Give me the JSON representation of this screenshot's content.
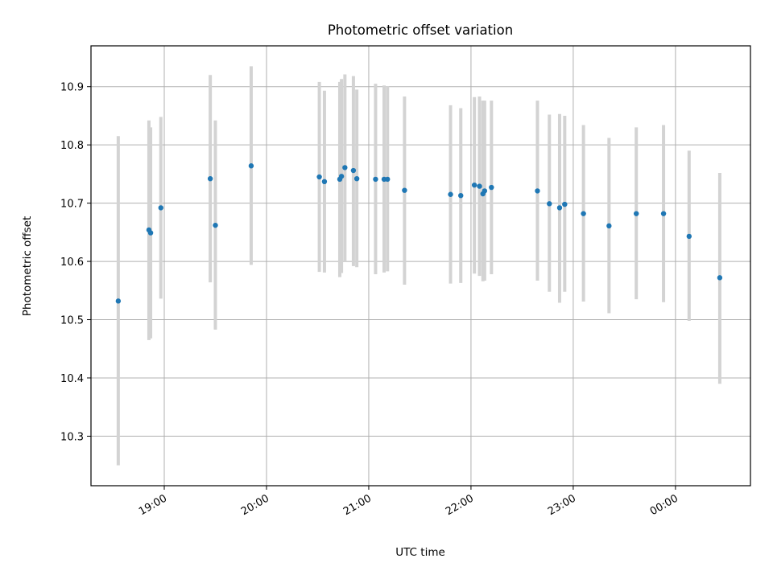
{
  "chart_data": {
    "type": "scatter",
    "title": "Photometric offset variation",
    "xlabel": "UTC time",
    "ylabel": "Photometric offset",
    "x_axis": {
      "kind": "time",
      "range": [
        "18:17",
        "00:44"
      ],
      "ticks": [
        "19:00",
        "20:00",
        "21:00",
        "22:00",
        "23:00",
        "00:00"
      ]
    },
    "ylim": [
      10.215,
      10.97
    ],
    "y_ticks": [
      "10.3",
      "10.4",
      "10.5",
      "10.6",
      "10.7",
      "10.8",
      "10.9"
    ],
    "grid": true,
    "legend": "none",
    "colors": {
      "points": "#1f77b4",
      "error_bars": "#d3d3d3"
    },
    "series": [
      {
        "points": [
          {
            "t": "18:33",
            "y": 10.532,
            "lo": 10.25,
            "hi": 10.815
          },
          {
            "t": "18:51",
            "y": 10.654,
            "lo": 10.465,
            "hi": 10.842
          },
          {
            "t": "18:52",
            "y": 10.649,
            "lo": 10.468,
            "hi": 10.83
          },
          {
            "t": "18:58",
            "y": 10.692,
            "lo": 10.536,
            "hi": 10.848
          },
          {
            "t": "19:27",
            "y": 10.742,
            "lo": 10.564,
            "hi": 10.92
          },
          {
            "t": "19:30",
            "y": 10.662,
            "lo": 10.483,
            "hi": 10.842
          },
          {
            "t": "19:51",
            "y": 10.764,
            "lo": 10.594,
            "hi": 10.935
          },
          {
            "t": "20:31",
            "y": 10.745,
            "lo": 10.582,
            "hi": 10.908
          },
          {
            "t": "20:34",
            "y": 10.737,
            "lo": 10.581,
            "hi": 10.893
          },
          {
            "t": "20:43",
            "y": 10.741,
            "lo": 10.573,
            "hi": 10.908
          },
          {
            "t": "20:44",
            "y": 10.746,
            "lo": 10.58,
            "hi": 10.913
          },
          {
            "t": "20:46",
            "y": 10.761,
            "lo": 10.6,
            "hi": 10.921
          },
          {
            "t": "20:51",
            "y": 10.756,
            "lo": 10.592,
            "hi": 10.918
          },
          {
            "t": "20:53",
            "y": 10.742,
            "lo": 10.59,
            "hi": 10.895
          },
          {
            "t": "21:04",
            "y": 10.741,
            "lo": 10.578,
            "hi": 10.905
          },
          {
            "t": "21:09",
            "y": 10.741,
            "lo": 10.581,
            "hi": 10.902
          },
          {
            "t": "21:11",
            "y": 10.741,
            "lo": 10.583,
            "hi": 10.901
          },
          {
            "t": "21:21",
            "y": 10.722,
            "lo": 10.56,
            "hi": 10.883
          },
          {
            "t": "21:48",
            "y": 10.715,
            "lo": 10.562,
            "hi": 10.868
          },
          {
            "t": "21:54",
            "y": 10.713,
            "lo": 10.563,
            "hi": 10.863
          },
          {
            "t": "22:02",
            "y": 10.731,
            "lo": 10.579,
            "hi": 10.882
          },
          {
            "t": "22:05",
            "y": 10.729,
            "lo": 10.575,
            "hi": 10.883
          },
          {
            "t": "22:07",
            "y": 10.716,
            "lo": 10.566,
            "hi": 10.876
          },
          {
            "t": "22:08",
            "y": 10.721,
            "lo": 10.567,
            "hi": 10.876
          },
          {
            "t": "22:12",
            "y": 10.727,
            "lo": 10.578,
            "hi": 10.876
          },
          {
            "t": "22:39",
            "y": 10.721,
            "lo": 10.567,
            "hi": 10.876
          },
          {
            "t": "22:46",
            "y": 10.699,
            "lo": 10.548,
            "hi": 10.852
          },
          {
            "t": "22:52",
            "y": 10.692,
            "lo": 10.529,
            "hi": 10.853
          },
          {
            "t": "22:55",
            "y": 10.698,
            "lo": 10.548,
            "hi": 10.85
          },
          {
            "t": "23:06",
            "y": 10.682,
            "lo": 10.531,
            "hi": 10.834
          },
          {
            "t": "23:21",
            "y": 10.661,
            "lo": 10.511,
            "hi": 10.812
          },
          {
            "t": "23:37",
            "y": 10.682,
            "lo": 10.535,
            "hi": 10.83
          },
          {
            "t": "23:53",
            "y": 10.682,
            "lo": 10.53,
            "hi": 10.834
          },
          {
            "t": "00:08",
            "y": 10.643,
            "lo": 10.498,
            "hi": 10.79
          },
          {
            "t": "00:26",
            "y": 10.572,
            "lo": 10.39,
            "hi": 10.752
          }
        ]
      }
    ]
  }
}
